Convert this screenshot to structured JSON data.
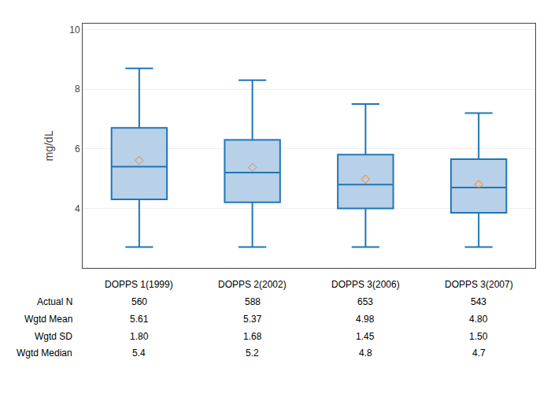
{
  "chart_data": {
    "type": "box",
    "ylabel": "mg/dL",
    "categories": [
      "DOPPS 1(1999)",
      "DOPPS 2(2002)",
      "DOPPS 3(2006)",
      "DOPPS 3(2007)"
    ],
    "q1": [
      4.3,
      4.2,
      4.0,
      3.85
    ],
    "median": [
      5.4,
      5.2,
      4.8,
      4.7
    ],
    "q3": [
      6.7,
      6.3,
      5.8,
      5.65
    ],
    "whislo": [
      2.7,
      2.7,
      2.7,
      2.7
    ],
    "whishi": [
      8.7,
      8.3,
      7.5,
      7.2
    ],
    "mean": [
      5.61,
      5.37,
      4.98,
      4.8
    ],
    "color": "#b8d0e8",
    "marker": "diamond",
    "ylim": [
      2.0,
      10.2
    ],
    "yticks": [
      4,
      6,
      8,
      10
    ],
    "grid": true,
    "tick_labels": "y",
    "table": {
      "rows": [
        "Actual N",
        "Wgtd Mean",
        "Wgtd SD",
        "Wgtd Median"
      ],
      "cells": [
        [
          "560",
          "588",
          "653",
          "543"
        ],
        [
          "5.61",
          "5.37",
          "4.98",
          "4.80"
        ],
        [
          "1.80",
          "1.68",
          "1.45",
          "1.50"
        ],
        [
          "5.4",
          "5.2",
          "4.8",
          "4.7"
        ]
      ]
    }
  }
}
